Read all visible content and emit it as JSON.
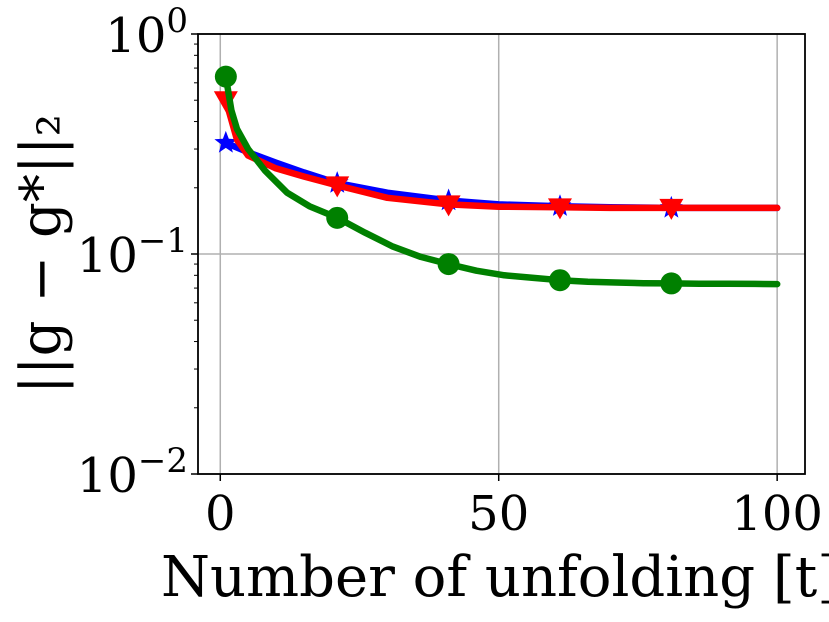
{
  "chart_data": {
    "type": "line",
    "title": "",
    "xlabel": "Number of unfolding [t]",
    "ylabel": "||g − g*||₂",
    "yscale": "log",
    "xlim": [
      -4,
      105
    ],
    "ylim": [
      0.01,
      1
    ],
    "grid": true,
    "x_ticks": [
      {
        "value": 0,
        "label": "0"
      },
      {
        "value": 50,
        "label": "50"
      },
      {
        "value": 100,
        "label": "100"
      }
    ],
    "y_ticks": [
      {
        "value": 0.01,
        "base": "10",
        "exp": "−2"
      },
      {
        "value": 0.1,
        "base": "10",
        "exp": "−1"
      },
      {
        "value": 1,
        "base": "10",
        "exp": "0"
      }
    ],
    "series": [
      {
        "color": "#0000ff",
        "marker": "star",
        "x": [
          1,
          5,
          10,
          15,
          21,
          30,
          41,
          50,
          61,
          70,
          81,
          90,
          100
        ],
        "y": [
          0.32,
          0.29,
          0.26,
          0.235,
          0.21,
          0.19,
          0.175,
          0.168,
          0.165,
          0.163,
          0.162,
          0.162,
          0.162
        ],
        "marker_x": [
          1,
          21,
          41,
          61,
          81
        ],
        "marker_y": [
          0.32,
          0.21,
          0.175,
          0.165,
          0.162
        ]
      },
      {
        "color": "#ff0000",
        "marker": "triangle-down",
        "x": [
          1,
          3,
          5,
          10,
          15,
          21,
          30,
          41,
          50,
          61,
          70,
          81,
          90,
          100
        ],
        "y": [
          0.5,
          0.33,
          0.28,
          0.245,
          0.225,
          0.205,
          0.18,
          0.168,
          0.164,
          0.163,
          0.162,
          0.162,
          0.162,
          0.162
        ],
        "marker_x": [
          1,
          21,
          41,
          61,
          81
        ],
        "marker_y": [
          0.5,
          0.205,
          0.168,
          0.163,
          0.162
        ]
      },
      {
        "color": "#008000",
        "marker": "circle",
        "x": [
          1,
          2,
          3,
          5,
          8,
          12,
          16,
          21,
          26,
          31,
          36,
          41,
          46,
          51,
          56,
          61,
          66,
          71,
          76,
          81,
          86,
          91,
          96,
          100
        ],
        "y": [
          0.64,
          0.45,
          0.37,
          0.3,
          0.24,
          0.19,
          0.165,
          0.146,
          0.125,
          0.108,
          0.097,
          0.09,
          0.084,
          0.08,
          0.078,
          0.076,
          0.0748,
          0.0742,
          0.0737,
          0.0735,
          0.0733,
          0.0732,
          0.0731,
          0.073
        ],
        "marker_x": [
          1,
          21,
          41,
          61,
          81
        ],
        "marker_y": [
          0.64,
          0.146,
          0.09,
          0.076,
          0.0735
        ]
      }
    ]
  }
}
